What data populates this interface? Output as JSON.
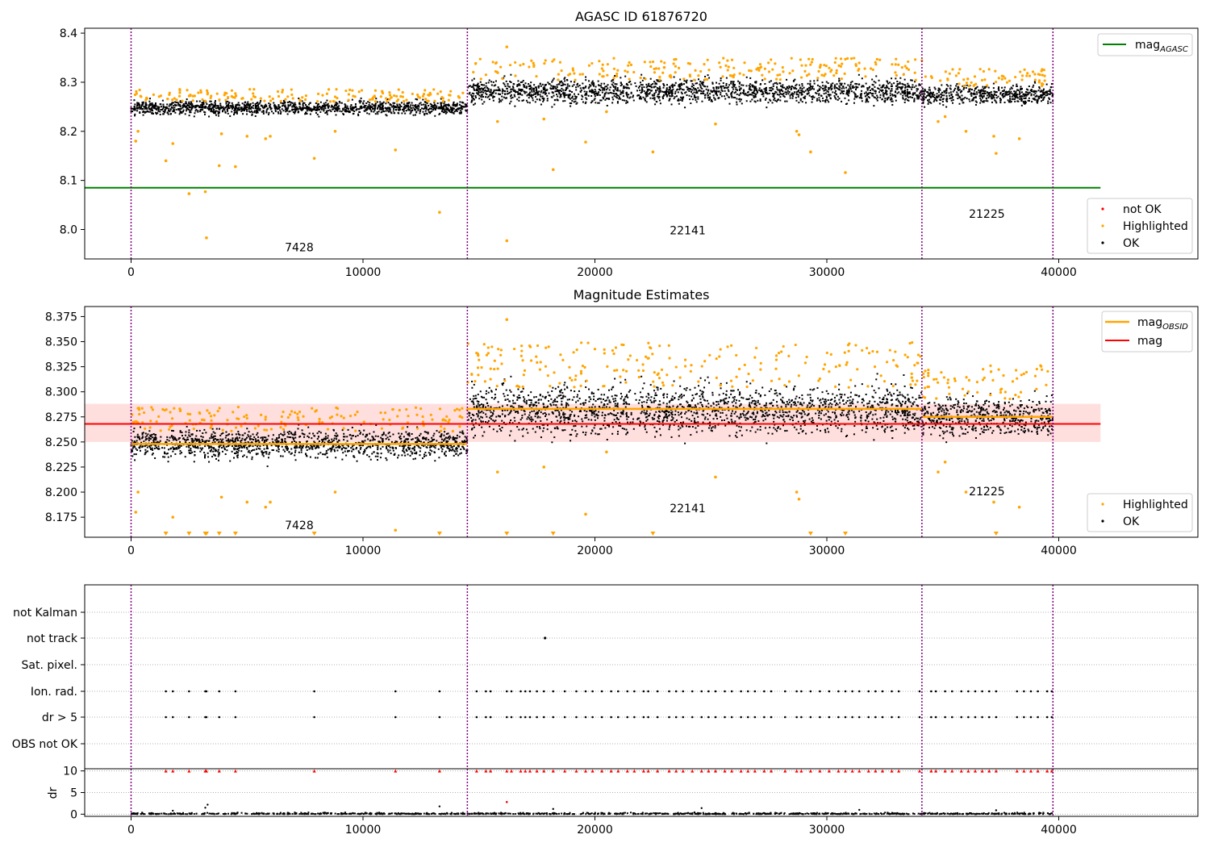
{
  "figure": {
    "colors": {
      "ok": "#000000",
      "highlighted": "#ffa500",
      "not_ok": "#ff0000",
      "agasc_line": "#008000",
      "mag_line": "#ff0000",
      "mag_band": "#ffdede",
      "obsid_line": "#ffa500",
      "obs_boundary": "#800080",
      "grid": "#b0b0b0"
    },
    "obs_boundaries": [
      0,
      14500,
      34100,
      39750
    ]
  },
  "chart_data": [
    {
      "type": "scatter",
      "title": "AGASC ID 61876720",
      "xlim": [
        -2000,
        46000
      ],
      "ylim": [
        7.94,
        8.41
      ],
      "xticks": [
        0,
        10000,
        20000,
        30000,
        40000
      ],
      "xtick_labels": [
        "0",
        "10000",
        "20000",
        "30000",
        "40000"
      ],
      "yticks": [
        8.0,
        8.1,
        8.2,
        8.3,
        8.4
      ],
      "ytick_labels": [
        "8.0",
        "8.1",
        "8.2",
        "8.3",
        "8.4"
      ],
      "mag_agasc": 8.085,
      "mag_agasc_x_range": [
        -2000,
        41800
      ],
      "obs_labels": [
        {
          "text": "7428",
          "x": 7250,
          "y": 7.956
        },
        {
          "text": "22141",
          "x": 24000,
          "y": 7.99
        },
        {
          "text": "21225",
          "x": 36900,
          "y": 8.024
        }
      ],
      "segments": [
        {
          "x": [
            0,
            14500
          ],
          "ok_center": 8.248,
          "ok_halfwidth": 0.018
        },
        {
          "x": [
            14500,
            34100
          ],
          "ok_center": 8.282,
          "ok_halfwidth": 0.032
        },
        {
          "x": [
            34100,
            39750
          ],
          "ok_center": 8.275,
          "ok_halfwidth": 0.025
        }
      ],
      "highlighted_outliers": [
        [
          200,
          8.18
        ],
        [
          300,
          8.2
        ],
        [
          1500,
          8.14
        ],
        [
          1800,
          8.175
        ],
        [
          2500,
          8.073
        ],
        [
          3200,
          8.077
        ],
        [
          3250,
          7.983
        ],
        [
          3800,
          8.13
        ],
        [
          3900,
          8.195
        ],
        [
          4500,
          8.128
        ],
        [
          5000,
          8.19
        ],
        [
          5800,
          8.185
        ],
        [
          6000,
          8.19
        ],
        [
          7900,
          8.145
        ],
        [
          8800,
          8.2
        ],
        [
          11400,
          8.162
        ],
        [
          13300,
          8.035
        ],
        [
          15800,
          8.22
        ],
        [
          16200,
          8.372
        ],
        [
          16200,
          7.977
        ],
        [
          17800,
          8.225
        ],
        [
          18200,
          8.122
        ],
        [
          19600,
          8.178
        ],
        [
          20500,
          8.24
        ],
        [
          22500,
          8.158
        ],
        [
          25200,
          8.215
        ],
        [
          28700,
          8.2
        ],
        [
          28800,
          8.193
        ],
        [
          29300,
          8.158
        ],
        [
          30800,
          8.116
        ],
        [
          34800,
          8.22
        ],
        [
          35100,
          8.23
        ],
        [
          36000,
          8.2
        ],
        [
          37200,
          8.19
        ],
        [
          37300,
          8.155
        ],
        [
          38300,
          8.185
        ]
      ],
      "legend": {
        "lines": [
          {
            "label": "mag",
            "subscript": "AGASC"
          }
        ],
        "points": [
          "not OK",
          "Highlighted",
          "OK"
        ]
      }
    },
    {
      "type": "scatter",
      "title": "Magnitude Estimates",
      "xlim": [
        -2000,
        46000
      ],
      "ylim": [
        8.155,
        8.385
      ],
      "xticks": [
        0,
        10000,
        20000,
        30000,
        40000
      ],
      "xtick_labels": [
        "0",
        "10000",
        "20000",
        "30000",
        "40000"
      ],
      "yticks": [
        8.175,
        8.2,
        8.225,
        8.25,
        8.275,
        8.3,
        8.325,
        8.35,
        8.375
      ],
      "ytick_labels": [
        "8.175",
        "8.200",
        "8.225",
        "8.250",
        "8.275",
        "8.300",
        "8.325",
        "8.350",
        "8.375"
      ],
      "mag": 8.268,
      "mag_band": [
        8.25,
        8.288
      ],
      "mag_x_range": [
        -2000,
        41800
      ],
      "mag_obsid": [
        {
          "x": [
            0,
            14500
          ],
          "value": 8.248
        },
        {
          "x": [
            14500,
            34100
          ],
          "value": 8.283
        },
        {
          "x": [
            34100,
            39750
          ],
          "value": 8.275
        }
      ],
      "obs_labels": [
        {
          "text": "7428",
          "x": 7250,
          "y": 8.163
        },
        {
          "text": "22141",
          "x": 24000,
          "y": 8.18
        },
        {
          "text": "21225",
          "x": 36900,
          "y": 8.197
        }
      ],
      "segments": [
        {
          "x": [
            0,
            14500
          ],
          "ok_center": 8.248,
          "ok_halfwidth": 0.018
        },
        {
          "x": [
            14500,
            34100
          ],
          "ok_center": 8.282,
          "ok_halfwidth": 0.032
        },
        {
          "x": [
            34100,
            39750
          ],
          "ok_center": 8.275,
          "ok_halfwidth": 0.025
        }
      ],
      "highlighted_outliers": [
        [
          200,
          8.18
        ],
        [
          300,
          8.2
        ],
        [
          1800,
          8.175
        ],
        [
          3900,
          8.195
        ],
        [
          5000,
          8.19
        ],
        [
          5800,
          8.185
        ],
        [
          6000,
          8.19
        ],
        [
          8800,
          8.2
        ],
        [
          11400,
          8.162
        ],
        [
          15800,
          8.22
        ],
        [
          16200,
          8.372
        ],
        [
          17800,
          8.225
        ],
        [
          19600,
          8.178
        ],
        [
          20500,
          8.24
        ],
        [
          25200,
          8.215
        ],
        [
          28700,
          8.2
        ],
        [
          28800,
          8.193
        ],
        [
          34800,
          8.22
        ],
        [
          35100,
          8.23
        ],
        [
          36000,
          8.2
        ],
        [
          37200,
          8.19
        ],
        [
          38300,
          8.185
        ]
      ],
      "clipped_low_x": [
        1500,
        2500,
        3200,
        3250,
        3800,
        4500,
        7900,
        13300,
        16200,
        18200,
        22500,
        29300,
        30800,
        37300
      ],
      "legend": {
        "lines": [
          {
            "label": "mag",
            "subscript": "OBSID"
          },
          {
            "label": "mag",
            "subscript": ""
          }
        ],
        "points": [
          "Highlighted",
          "OK"
        ]
      }
    },
    {
      "type": "scatter",
      "title": "",
      "xlim": [
        -2000,
        46000
      ],
      "flag_rows": [
        "not Kalman",
        "not track",
        "Sat. pixel.",
        "Ion. rad.",
        "dr > 5",
        "OBS not OK"
      ],
      "flag_events_x": [
        1500,
        1800,
        2500,
        3200,
        3250,
        3800,
        4500,
        7900,
        11400,
        13300,
        14900,
        15300,
        15500,
        16200,
        16400,
        16800,
        17000,
        17200,
        17500,
        17800,
        18200,
        18700,
        19200,
        19600,
        19900,
        20300,
        20700,
        21000,
        21400,
        21700,
        22100,
        22300,
        22700,
        23200,
        23500,
        23800,
        24200,
        24600,
        24900,
        25200,
        25600,
        25900,
        26300,
        26600,
        26900,
        27300,
        27600,
        28200,
        28700,
        28900,
        29300,
        29700,
        30100,
        30500,
        30800,
        31100,
        31400,
        31800,
        32100,
        32400,
        32800,
        33100,
        34000,
        34500,
        34700,
        35100,
        35400,
        35800,
        36100,
        36400,
        36700,
        37000,
        37300,
        38200,
        38500,
        38800,
        39100,
        39500,
        39700
      ],
      "not_track_x": [
        17850
      ],
      "dr_ylim": [
        -0.5,
        10.5
      ],
      "dr_yticks": [
        0,
        5,
        10
      ],
      "dr_ytick_labels": [
        "0",
        "5",
        "10"
      ],
      "dr_label": "dr",
      "dr_spikes": [
        [
          1800,
          0.8
        ],
        [
          3200,
          1.5
        ],
        [
          3300,
          2.2
        ],
        [
          13300,
          1.8
        ],
        [
          16200,
          2.8
        ],
        [
          18200,
          1.2
        ],
        [
          24600,
          1.4
        ],
        [
          31400,
          1.0
        ],
        [
          37300,
          0.9
        ]
      ],
      "xticks": [
        0,
        10000,
        20000,
        30000,
        40000
      ],
      "xtick_labels": [
        "0",
        "10000",
        "20000",
        "30000",
        "40000"
      ]
    }
  ]
}
